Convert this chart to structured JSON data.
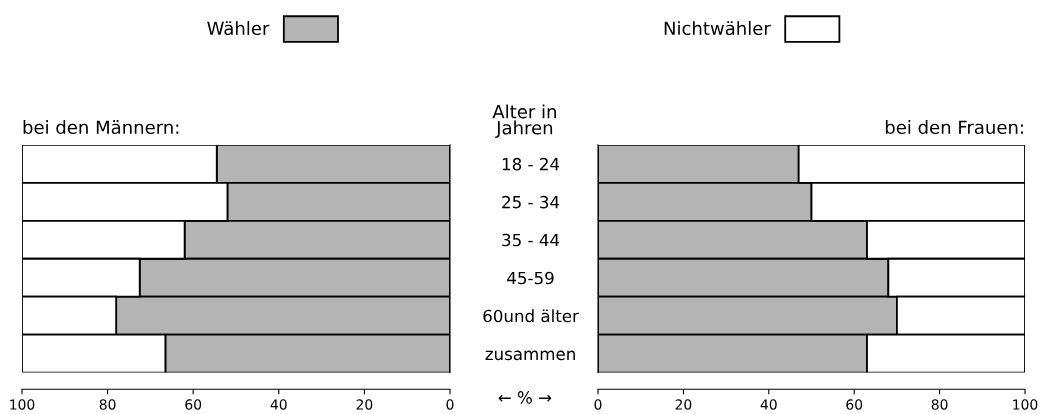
{
  "chart_data": [
    {
      "type": "bar",
      "orientation": "horizontal",
      "stacked": true,
      "title": "bei den Männern:",
      "ylabel": "Alter in\nJahren",
      "xlabel": "← % →",
      "categories": [
        "18 - 24",
        "25 - 34",
        "35 - 44",
        "45-59",
        "60und älter",
        "zusammen"
      ],
      "series": [
        {
          "name": "Wähler",
          "color": "#b4b4b4",
          "values": [
            54.5,
            52,
            62,
            72.5,
            78,
            66.5
          ]
        },
        {
          "name": "Nichtwähler",
          "color": "#ffffff",
          "values": [
            45.5,
            48,
            38,
            27.5,
            22,
            33.5
          ]
        }
      ],
      "xlim": [
        100,
        0
      ],
      "xticks": [
        100,
        80,
        60,
        40,
        20,
        0
      ],
      "legend": "top"
    },
    {
      "type": "bar",
      "orientation": "horizontal",
      "stacked": true,
      "title": "bei den Frauen:",
      "tick_labels": "x",
      "categories": [
        null,
        null,
        null,
        null,
        null,
        null
      ],
      "series": [
        {
          "color": "#b4b4b4",
          "values": [
            47,
            50,
            63,
            68,
            70,
            63
          ]
        },
        {
          "color": "#ffffff",
          "values": [
            53,
            50,
            37,
            32,
            30,
            37
          ]
        }
      ],
      "xlim": [
        0,
        100
      ],
      "xticks": [
        0,
        20,
        40,
        60,
        80,
        100
      ]
    }
  ]
}
